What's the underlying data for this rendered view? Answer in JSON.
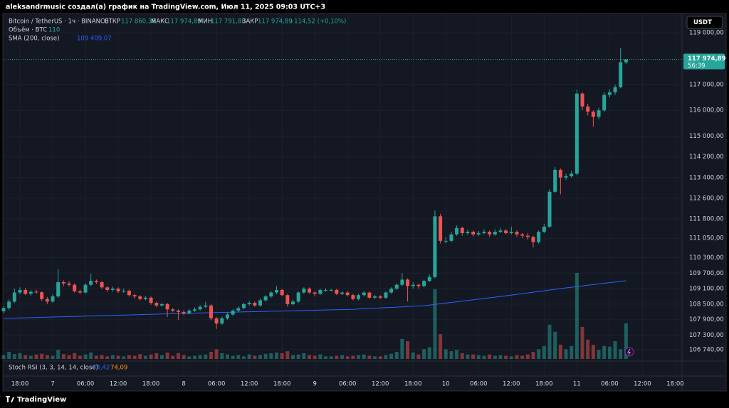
{
  "header": {
    "text": "aleksandrmusic создал(а) график на TradingView.com, Июл 11, 2025 09:03 UTC+3"
  },
  "legend": {
    "symbol": "Bitcoin / TetherUS · 1ч · BINANCE",
    "open_label": "ОТКР",
    "open": "117 860,38",
    "high_label": "МАКС",
    "high": "117 974,89",
    "low_label": "МИН",
    "low": "117 791,80",
    "close_label": "ЗАКР",
    "close": "117 974,89",
    "change": "+114,52 (+0,10%)"
  },
  "chart_data": {
    "type": "candlestick",
    "open": [
      108230,
      108350,
      108600,
      108950,
      109050,
      108900,
      108980,
      108960,
      108700,
      108600,
      108800,
      109350,
      109300,
      109250,
      109000,
      108950,
      109250,
      109400,
      109350,
      109150,
      109050,
      109100,
      109000,
      109020,
      108850,
      108800,
      108700,
      108750,
      108550,
      108450,
      108500,
      108300,
      108250,
      108200,
      108150,
      108250,
      108300,
      108400,
      108450,
      107950,
      107750,
      107950,
      108100,
      108250,
      108350,
      108500,
      108550,
      108450,
      108650,
      108800,
      108950,
      109050,
      108850,
      108500,
      108600,
      108950,
      109100,
      108950,
      108900,
      109050,
      109050,
      109050,
      108900,
      108950,
      108850,
      108700,
      108850,
      108950,
      108750,
      108800,
      108750,
      108950,
      109100,
      109250,
      109450,
      109200,
      109250,
      109200,
      109400,
      109550,
      111900,
      110950,
      110950,
      111200,
      111450,
      111250,
      111300,
      111200,
      111250,
      111300,
      111200,
      111300,
      111350,
      111250,
      111300,
      111200,
      111150,
      111100,
      110900,
      111300,
      111500,
      112850,
      113700,
      113400,
      113450,
      113550,
      116650,
      116150,
      115950,
      115750,
      116000,
      116600,
      116700,
      116900,
      117860.38
    ],
    "high": [
      108420,
      108680,
      109100,
      109150,
      109120,
      109050,
      109060,
      109000,
      108780,
      108880,
      109850,
      109420,
      109380,
      109300,
      109060,
      109320,
      109680,
      109450,
      109400,
      109200,
      109180,
      109150,
      109100,
      109060,
      108900,
      108850,
      108820,
      108800,
      108600,
      108560,
      108550,
      108350,
      108300,
      108260,
      108320,
      108380,
      108460,
      108600,
      108500,
      108000,
      108020,
      108160,
      108300,
      108420,
      108560,
      108620,
      108600,
      108720,
      108850,
      109000,
      109200,
      109100,
      108900,
      108680,
      109000,
      109150,
      109150,
      109000,
      109100,
      109120,
      109100,
      109100,
      109000,
      109000,
      108900,
      108900,
      109000,
      108980,
      108860,
      108850,
      109000,
      109150,
      109300,
      109700,
      109500,
      109350,
      109300,
      109450,
      109650,
      112130,
      112000,
      111100,
      111300,
      111550,
      111500,
      111380,
      111350,
      111330,
      111400,
      111350,
      111400,
      111450,
      111400,
      111500,
      111350,
      111250,
      111250,
      111150,
      111350,
      111600,
      112950,
      113800,
      113750,
      113550,
      113650,
      116800,
      116700,
      116250,
      116000,
      116100,
      116700,
      116800,
      117000,
      118400,
      117974.89
    ],
    "low": [
      108150,
      108280,
      108550,
      108880,
      108850,
      108830,
      108900,
      108620,
      108500,
      108560,
      108750,
      109200,
      109180,
      108950,
      108880,
      108900,
      109200,
      109280,
      109100,
      108980,
      108990,
      108930,
      108940,
      108800,
      108720,
      108640,
      108650,
      108480,
      108380,
      108400,
      108000,
      108180,
      107900,
      108080,
      108100,
      108200,
      108240,
      108350,
      107880,
      107540,
      107700,
      107900,
      108050,
      108200,
      108300,
      108440,
      108400,
      108400,
      108600,
      108750,
      108900,
      108800,
      108400,
      108450,
      108550,
      108900,
      108900,
      108800,
      108850,
      108980,
      108990,
      108850,
      108850,
      108800,
      108650,
      108650,
      108800,
      108700,
      108700,
      108700,
      108700,
      108900,
      109050,
      109200,
      108600,
      109100,
      109100,
      109150,
      109350,
      109500,
      110850,
      110850,
      110900,
      111150,
      111150,
      111180,
      111120,
      111150,
      111200,
      111100,
      111150,
      111250,
      111200,
      111200,
      111100,
      111050,
      111000,
      110700,
      110850,
      111250,
      111450,
      112800,
      112750,
      113300,
      113400,
      113500,
      116000,
      115800,
      115370,
      115650,
      115950,
      116500,
      116600,
      116850,
      117791.8
    ],
    "close": [
      108350,
      108600,
      108950,
      109050,
      108900,
      108980,
      108960,
      108700,
      108600,
      108800,
      109350,
      109300,
      109250,
      109000,
      108950,
      109250,
      109400,
      109350,
      109150,
      109050,
      109100,
      109000,
      109020,
      108850,
      108800,
      108700,
      108750,
      108550,
      108450,
      108500,
      108300,
      108250,
      108200,
      108150,
      108250,
      108300,
      108400,
      108450,
      107950,
      107750,
      107950,
      108100,
      108250,
      108350,
      108500,
      108550,
      108450,
      108650,
      108800,
      108950,
      109050,
      108850,
      108500,
      108600,
      108950,
      109100,
      108950,
      108900,
      109050,
      109050,
      109050,
      108900,
      108950,
      108850,
      108700,
      108850,
      108950,
      108750,
      108800,
      108750,
      108950,
      109100,
      109250,
      109450,
      109200,
      109250,
      109200,
      109400,
      109550,
      111900,
      110950,
      110950,
      111200,
      111450,
      111250,
      111300,
      111200,
      111250,
      111300,
      111200,
      111300,
      111350,
      111250,
      111300,
      111200,
      111150,
      111100,
      110900,
      111300,
      111500,
      112850,
      113700,
      113400,
      113450,
      113550,
      116650,
      116150,
      115950,
      115750,
      116000,
      116600,
      116700,
      116900,
      117860.38,
      117974.89
    ],
    "up_color": "#26a69a",
    "down_color": "#ef5350",
    "xlim": [
      -0.65,
      124.25
    ],
    "xticks": [
      {
        "value": 3,
        "label": "18:00"
      },
      {
        "value": 9,
        "label": "7"
      },
      {
        "value": 15,
        "label": "06:00"
      },
      {
        "value": 21,
        "label": "12:00"
      },
      {
        "value": 27,
        "label": "18:00"
      },
      {
        "value": 33,
        "label": "8"
      },
      {
        "value": 39,
        "label": "06:00"
      },
      {
        "value": 45,
        "label": "12:00"
      },
      {
        "value": 51,
        "label": "18:00"
      },
      {
        "value": 57,
        "label": "9"
      },
      {
        "value": 63,
        "label": "06:00"
      },
      {
        "value": 69,
        "label": "12:00"
      },
      {
        "value": 75,
        "label": "18:00"
      },
      {
        "value": 81,
        "label": "10"
      },
      {
        "value": 87,
        "label": "06:00"
      },
      {
        "value": 93,
        "label": "12:00"
      },
      {
        "value": 99,
        "label": "18:00"
      },
      {
        "value": 105,
        "label": "11"
      },
      {
        "value": 111,
        "label": "06:00"
      },
      {
        "value": 117,
        "label": "12:00"
      },
      {
        "value": 123,
        "label": "18:00"
      }
    ],
    "ylim": [
      106380,
      119720
    ],
    "yticks": [
      {
        "value": 119000,
        "label": "119 000,00"
      },
      {
        "value": 117000,
        "label": "117 000,00"
      },
      {
        "value": 116000,
        "label": "116 000,00"
      },
      {
        "value": 115000,
        "label": "115 000,00"
      },
      {
        "value": 114200,
        "label": "114 200,00"
      },
      {
        "value": 113400,
        "label": "113 400,00"
      },
      {
        "value": 112600,
        "label": "112 600,00"
      },
      {
        "value": 111800,
        "label": "111 800,00"
      },
      {
        "value": 111050,
        "label": "111 050,00"
      },
      {
        "value": 110300,
        "label": "110 300,00"
      },
      {
        "value": 109700,
        "label": "109 700,00"
      },
      {
        "value": 109100,
        "label": "109 100,00"
      },
      {
        "value": 108500,
        "label": "108 500,00"
      },
      {
        "value": 107900,
        "label": "107 900,00"
      },
      {
        "value": 107300,
        "label": "107 300,00"
      },
      {
        "value": 106740,
        "label": "106 740,00"
      }
    ],
    "grid": true,
    "currency": "USDT",
    "price_tag": {
      "value": 117974.89,
      "label": "117 974,89",
      "countdown": "56:39"
    },
    "volume": {
      "name": "Объём · BTC",
      "values": [
        12,
        22,
        15,
        18,
        12,
        10,
        14,
        16,
        12,
        10,
        28,
        15,
        12,
        18,
        10,
        14,
        20,
        10,
        12,
        8,
        12,
        10,
        8,
        12,
        10,
        15,
        10,
        14,
        18,
        12,
        20,
        10,
        18,
        12,
        8,
        10,
        12,
        14,
        22,
        30,
        18,
        14,
        10,
        12,
        8,
        14,
        10,
        12,
        16,
        18,
        20,
        18,
        24,
        12,
        14,
        18,
        12,
        10,
        14,
        8,
        8,
        10,
        12,
        8,
        10,
        12,
        14,
        10,
        8,
        8,
        12,
        16,
        22,
        62,
        55,
        20,
        14,
        30,
        36,
        216,
        77,
        30,
        24,
        28,
        18,
        14,
        14,
        12,
        10,
        14,
        10,
        12,
        10,
        8,
        12,
        10,
        14,
        22,
        30,
        40,
        106,
        84,
        44,
        30,
        40,
        266,
        99,
        60,
        44,
        28,
        40,
        38,
        55,
        30,
        110
      ]
    },
    "sma": {
      "name": "SMA (200, close)",
      "color": "#2962ff",
      "last_label": "109 409,07",
      "values": [
        107950,
        107956,
        107962,
        107967,
        107973,
        107979,
        107985,
        107991,
        107996,
        108002,
        108008,
        108014,
        108020,
        108025,
        108031,
        108037,
        108043,
        108049,
        108054,
        108060,
        108066,
        108072,
        108078,
        108083,
        108089,
        108095,
        108101,
        108107,
        108112,
        108118,
        108124,
        108130,
        108136,
        108141,
        108147,
        108153,
        108159,
        108165,
        108170,
        108175,
        108180,
        108185,
        108190,
        108195,
        108200,
        108205,
        108210,
        108215,
        108220,
        108225,
        108230,
        108235,
        108240,
        108245,
        108250,
        108255,
        108260,
        108265,
        108270,
        108275,
        108280,
        108285,
        108290,
        108295,
        108300,
        108311,
        108322,
        108332,
        108343,
        108354,
        108365,
        108375,
        108386,
        108397,
        108408,
        108418,
        108429,
        108440,
        108465,
        108491,
        108516,
        108541,
        108567,
        108592,
        108618,
        108643,
        108668,
        108694,
        108719,
        108745,
        108770,
        108798,
        108825,
        108853,
        108881,
        108908,
        108936,
        108964,
        108992,
        109019,
        109047,
        109075,
        109102,
        109130,
        109155,
        109181,
        109206,
        109232,
        109257,
        109282,
        109308,
        109333,
        109358,
        109384,
        109409.07
      ]
    }
  },
  "stoch_rsi": {
    "name": "Stoch RSI (3, 3, 14, 14, close)",
    "k": "74,42",
    "d": "74,09"
  },
  "footer": {
    "brand": "TradingView"
  }
}
